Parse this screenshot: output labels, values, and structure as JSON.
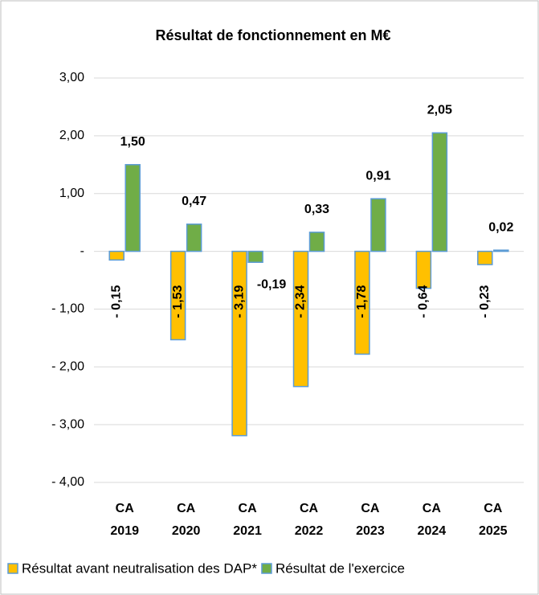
{
  "chart_data": {
    "type": "bar",
    "title": "Résultat de fonctionnement en M€",
    "categories": [
      "CA 2019",
      "CA 2020",
      "CA 2021",
      "CA 2022",
      "CA 2023",
      "CA 2024",
      "CA 2025"
    ],
    "series": [
      {
        "name": "Résultat avant neutralisation des DAP*",
        "color": "#FFC000",
        "values": [
          -0.15,
          -1.53,
          -3.19,
          -2.34,
          -1.78,
          -0.64,
          -0.23
        ],
        "value_labels": [
          "- 0,15",
          "- 1,53",
          "- 3,19",
          "- 2,34",
          "- 1,78",
          "- 0,64",
          "- 0,23"
        ]
      },
      {
        "name": "Résultat de l'exercice",
        "color": "#70AD47",
        "values": [
          1.5,
          0.47,
          -0.19,
          0.33,
          0.91,
          2.05,
          0.02
        ],
        "value_labels": [
          "1,50",
          "0,47",
          "-0,19",
          "0,33",
          "0,91",
          "2,05",
          "0,02"
        ]
      }
    ],
    "ylim": [
      -4,
      3
    ],
    "yticks": [
      {
        "value": 3,
        "label": "3,00"
      },
      {
        "value": 2,
        "label": "2,00"
      },
      {
        "value": 1,
        "label": "1,00"
      },
      {
        "value": 0,
        "label": "-"
      },
      {
        "value": -1,
        "label": "- 1,00"
      },
      {
        "value": -2,
        "label": "- 2,00"
      },
      {
        "value": -3,
        "label": "- 3,00"
      },
      {
        "value": -4,
        "label": "- 4,00"
      }
    ],
    "grid": true,
    "legend": "bottom"
  }
}
